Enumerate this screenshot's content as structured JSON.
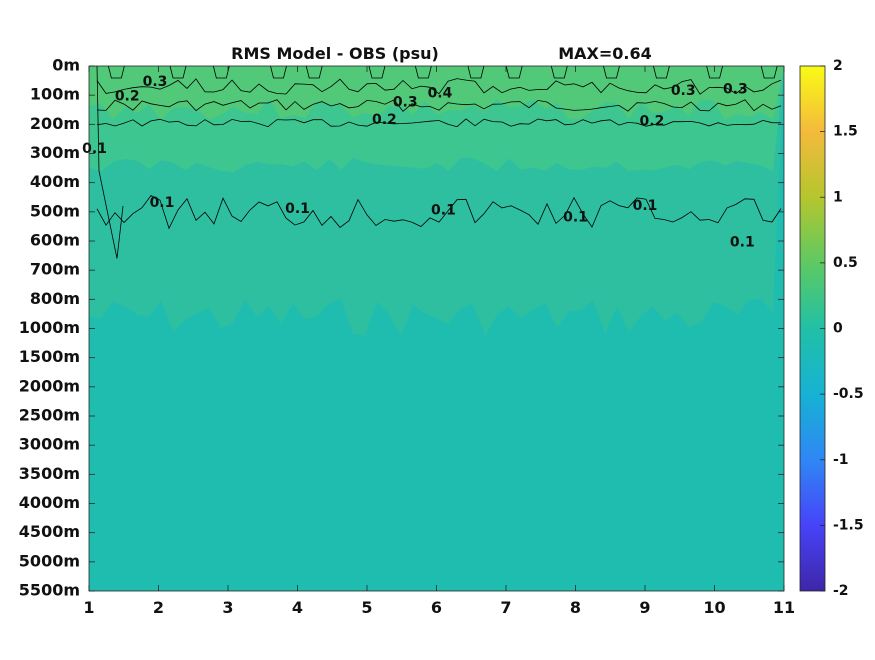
{
  "chart_data": {
    "type": "heatmap",
    "title": "RMS Model - OBS (psu)",
    "max_label": "MAX=0.64",
    "x": [
      1,
      2,
      3,
      4,
      5,
      6,
      7,
      8,
      9,
      10,
      11
    ],
    "x_tick_labels": [
      "1",
      "2",
      "3",
      "4",
      "5",
      "6",
      "7",
      "8",
      "9",
      "10",
      "11"
    ],
    "xlim": [
      1,
      11
    ],
    "depth_tick_labels": [
      "0m",
      "100m",
      "200m",
      "300m",
      "400m",
      "500m",
      "600m",
      "700m",
      "800m",
      "1000m",
      "1500m",
      "2000m",
      "2500m",
      "3000m",
      "3500m",
      "4000m",
      "4500m",
      "5000m",
      "5500m"
    ],
    "colorbar": {
      "range": [
        -2,
        2
      ],
      "tick_labels": [
        "2",
        "1.5",
        "1",
        "0.5",
        "0",
        "-0.5",
        "-1",
        "-1.5",
        "-2"
      ],
      "tick_values": [
        2,
        1.5,
        1,
        0.5,
        0,
        -0.5,
        -1,
        -1.5,
        -2
      ],
      "colormap": [
        "#3e26a8",
        "#4743f8",
        "#2f87f4",
        "#16b2d4",
        "#21c0a6",
        "#5ec962",
        "#b5c62d",
        "#f4ba3c",
        "#f9fb15"
      ]
    },
    "contour_levels": [
      0.1,
      0.2,
      0.3,
      0.4
    ],
    "contour_labels": [
      {
        "text": "0.3",
        "x": 1.95,
        "depth_index": 0.55
      },
      {
        "text": "0.2",
        "x": 1.55,
        "depth_index": 1.05
      },
      {
        "text": "0.3",
        "x": 5.55,
        "depth_index": 1.25
      },
      {
        "text": "0.4",
        "x": 6.05,
        "depth_index": 0.95
      },
      {
        "text": "0.3",
        "x": 9.55,
        "depth_index": 0.85
      },
      {
        "text": "0.3",
        "x": 10.3,
        "depth_index": 0.8
      },
      {
        "text": "0.2",
        "x": 5.25,
        "depth_index": 1.85
      },
      {
        "text": "0.2",
        "x": 9.1,
        "depth_index": 1.9
      },
      {
        "text": "0.1",
        "x": 1.08,
        "depth_index": 2.85
      },
      {
        "text": "0.1",
        "x": 2.05,
        "depth_index": 4.7
      },
      {
        "text": "0.1",
        "x": 4.0,
        "depth_index": 4.9
      },
      {
        "text": "0.1",
        "x": 6.1,
        "depth_index": 4.95
      },
      {
        "text": "0.1",
        "x": 8.0,
        "depth_index": 5.2
      },
      {
        "text": "0.1",
        "x": 9.0,
        "depth_index": 4.8
      },
      {
        "text": "0.1",
        "x": 10.4,
        "depth_index": 6.05
      }
    ],
    "colors": {
      "deep_field": "#1fbcb0",
      "mid_field": "#2ebfa0",
      "upper_field": "#3ec690",
      "surface_field": "#52c978",
      "contour": "#000000"
    }
  }
}
